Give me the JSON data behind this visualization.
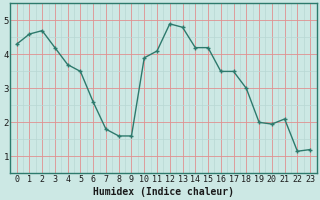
{
  "x": [
    0,
    1,
    2,
    3,
    4,
    5,
    6,
    7,
    8,
    9,
    10,
    11,
    12,
    13,
    14,
    15,
    16,
    17,
    18,
    19,
    20,
    21,
    22,
    23
  ],
  "y": [
    4.3,
    4.6,
    4.7,
    4.2,
    3.7,
    3.5,
    2.6,
    1.8,
    1.6,
    1.6,
    3.9,
    4.1,
    4.9,
    4.8,
    4.2,
    4.2,
    3.5,
    3.5,
    3.0,
    2.0,
    1.95,
    2.1,
    1.15,
    1.2
  ],
  "xlabel": "Humidex (Indice chaleur)",
  "ylim": [
    0.5,
    5.3
  ],
  "xlim": [
    -0.5,
    23.5
  ],
  "line_color": "#2d7a6c",
  "marker_color": "#2d7a6c",
  "bg_color": "#cce8e4",
  "grid_color_major": "#e09090",
  "grid_color_minor": "#b8d8d4",
  "yticks": [
    1,
    2,
    3,
    4,
    5
  ],
  "xticks": [
    0,
    1,
    2,
    3,
    4,
    5,
    6,
    7,
    8,
    9,
    10,
    11,
    12,
    13,
    14,
    15,
    16,
    17,
    18,
    19,
    20,
    21,
    22,
    23
  ],
  "xlabel_fontsize": 7,
  "tick_fontsize": 6
}
